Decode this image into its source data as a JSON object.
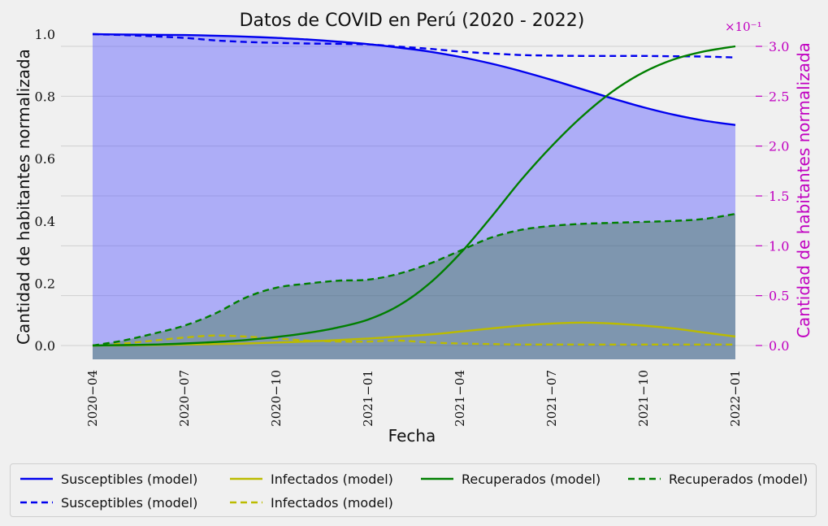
{
  "chart_data": {
    "type": "line",
    "title": "Datos de COVID en Perú (2020 - 2022)",
    "xlabel": "Fecha",
    "ylabel_left": "Cantidad de habitantes normalizada",
    "ylabel_right": "Cantidad de habitantes normalizada",
    "right_axis_multiplier": "×10⁻¹",
    "x_ticks": [
      "2020−04",
      "2020−07",
      "2020−10",
      "2021−01",
      "2021−04",
      "2021−07",
      "2021−10",
      "2022−01"
    ],
    "x_range": [
      "2020-04",
      "2022-01"
    ],
    "ylim_left": [
      0.0,
      1.0
    ],
    "y_ticks_left": [
      "0.0",
      "0.2",
      "0.4",
      "0.6",
      "0.8",
      "1.0"
    ],
    "ylim_right": [
      0.0,
      3.0
    ],
    "y_ticks_right": [
      "0.0",
      "0.5",
      "1.0",
      "1.5",
      "2.0",
      "2.5",
      "3.0"
    ],
    "grid": true,
    "legend_position": "bottom",
    "x": [
      "2020-04",
      "2020-05",
      "2020-06",
      "2020-07",
      "2020-08",
      "2020-09",
      "2020-10",
      "2020-11",
      "2020-12",
      "2021-01",
      "2021-02",
      "2021-03",
      "2021-04",
      "2021-05",
      "2021-06",
      "2021-07",
      "2021-08",
      "2021-09",
      "2021-10",
      "2021-11",
      "2021-12",
      "2022-01"
    ],
    "series": [
      {
        "name": "Susceptibles (model)",
        "axis": "left",
        "color": "#0000ee",
        "style": "solid",
        "fill": true,
        "values": [
          1.0,
          0.999,
          0.998,
          0.997,
          0.995,
          0.992,
          0.988,
          0.983,
          0.976,
          0.968,
          0.957,
          0.944,
          0.927,
          0.906,
          0.881,
          0.853,
          0.823,
          0.793,
          0.765,
          0.741,
          0.722,
          0.708
        ]
      },
      {
        "name": "Susceptibles (model)",
        "axis": "left",
        "color": "#0000ee",
        "style": "dashed",
        "values": [
          1.0,
          0.997,
          0.993,
          0.988,
          0.98,
          0.975,
          0.972,
          0.97,
          0.969,
          0.967,
          0.96,
          0.953,
          0.944,
          0.938,
          0.933,
          0.931,
          0.93,
          0.93,
          0.93,
          0.929,
          0.928,
          0.925
        ]
      },
      {
        "name": "Infectados (model)",
        "axis": "right",
        "color": "#bbbb00",
        "style": "solid",
        "values": [
          0.0,
          0.002,
          0.005,
          0.01,
          0.015,
          0.02,
          0.03,
          0.04,
          0.055,
          0.07,
          0.09,
          0.11,
          0.14,
          0.17,
          0.2,
          0.22,
          0.23,
          0.22,
          0.2,
          0.17,
          0.13,
          0.09
        ]
      },
      {
        "name": "Infectados (model)",
        "axis": "right",
        "color": "#bbbb00",
        "style": "dashed",
        "values": [
          0.0,
          0.02,
          0.05,
          0.08,
          0.1,
          0.09,
          0.07,
          0.05,
          0.04,
          0.04,
          0.05,
          0.03,
          0.02,
          0.015,
          0.01,
          0.01,
          0.01,
          0.01,
          0.01,
          0.01,
          0.01,
          0.01
        ]
      },
      {
        "name": "Recuperados (model)",
        "axis": "right",
        "color": "#007f00",
        "style": "solid",
        "values": [
          0.0,
          0.004,
          0.01,
          0.02,
          0.035,
          0.055,
          0.085,
          0.125,
          0.18,
          0.26,
          0.4,
          0.62,
          0.92,
          1.28,
          1.66,
          2.0,
          2.3,
          2.55,
          2.74,
          2.87,
          2.95,
          3.0
        ]
      },
      {
        "name": "Recuperados (model)",
        "axis": "right",
        "color": "#007f00",
        "style": "dashed",
        "fill": true,
        "values": [
          0.0,
          0.05,
          0.12,
          0.2,
          0.32,
          0.48,
          0.58,
          0.62,
          0.65,
          0.66,
          0.72,
          0.82,
          0.95,
          1.08,
          1.16,
          1.2,
          1.22,
          1.23,
          1.24,
          1.25,
          1.27,
          1.32
        ]
      }
    ]
  },
  "legend": {
    "items": [
      {
        "label": "Susceptibles (model)",
        "color": "#0000ee",
        "style": "solid"
      },
      {
        "label": "Susceptibles (model)",
        "color": "#0000ee",
        "style": "dashed"
      },
      {
        "label": "Infectados (model)",
        "color": "#bbbb00",
        "style": "solid"
      },
      {
        "label": "Infectados (model)",
        "color": "#bbbb00",
        "style": "dashed"
      },
      {
        "label": "Recuperados (model)",
        "color": "#007f00",
        "style": "solid"
      },
      {
        "label": "Recuperados (model)",
        "color": "#007f00",
        "style": "dashed"
      }
    ]
  }
}
